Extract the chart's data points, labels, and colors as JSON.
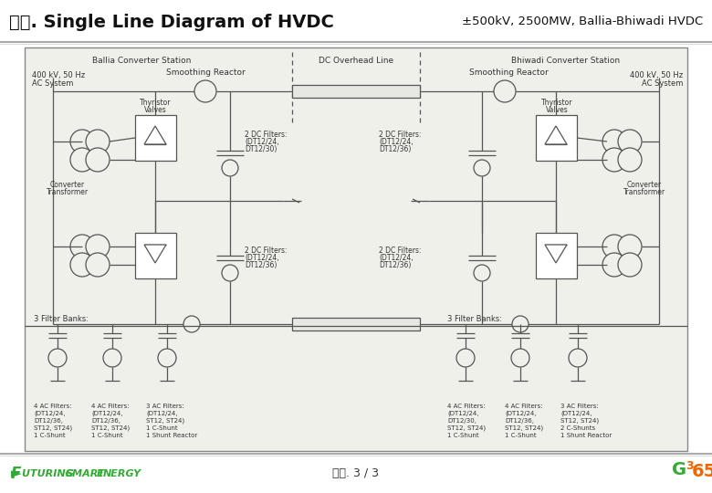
{
  "title_left": "별첨. Single Line Diagram of HVDC",
  "title_right": "±500kV, 2500MW, Ballia-Bhiwadi HVDC",
  "footer_center": "별첨. 3 / 3",
  "bg_color": "#ffffff",
  "diagram_bg": "#f0f0ea",
  "line_color": "#555555",
  "green_color": "#33aa33",
  "orange_color": "#ee6600",
  "lw": 0.9
}
